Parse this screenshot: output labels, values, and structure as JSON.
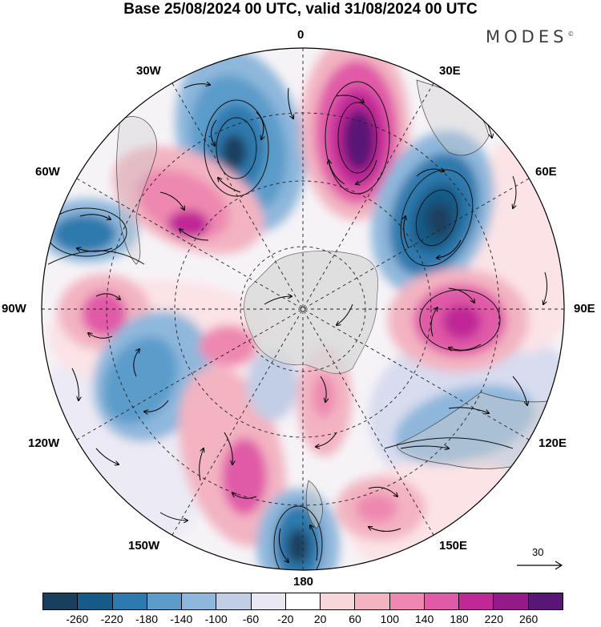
{
  "title": "Base 25/08/2024 00 UTC, valid 31/08/2024 00 UTC",
  "brand": "MODES",
  "brand_mark": "©",
  "longitude_labels": {
    "top": "0",
    "top_right": "30E",
    "right_upper": "60E",
    "right": "90E",
    "right_lower": "120E",
    "bottom_right": "150E",
    "bottom": "180",
    "bottom_left": "150W",
    "left_lower": "120W",
    "left": "90W",
    "left_upper": "60W",
    "top_left": "30W"
  },
  "reference_vector": "30",
  "colorbar": {
    "ticks": [
      "-260",
      "-220",
      "-180",
      "-140",
      "-100",
      "-60",
      "-20",
      "20",
      "60",
      "100",
      "140",
      "180",
      "220",
      "260"
    ],
    "colors": [
      "#1a3f5e",
      "#165a87",
      "#2e79ad",
      "#5b9ccb",
      "#8fb7dc",
      "#c2cde6",
      "#e9e8f2",
      "#ffffff",
      "#f8d6d9",
      "#f3b3c1",
      "#ee88b0",
      "#e05aa7",
      "#c02896",
      "#941a8a",
      "#5a1676"
    ]
  }
}
